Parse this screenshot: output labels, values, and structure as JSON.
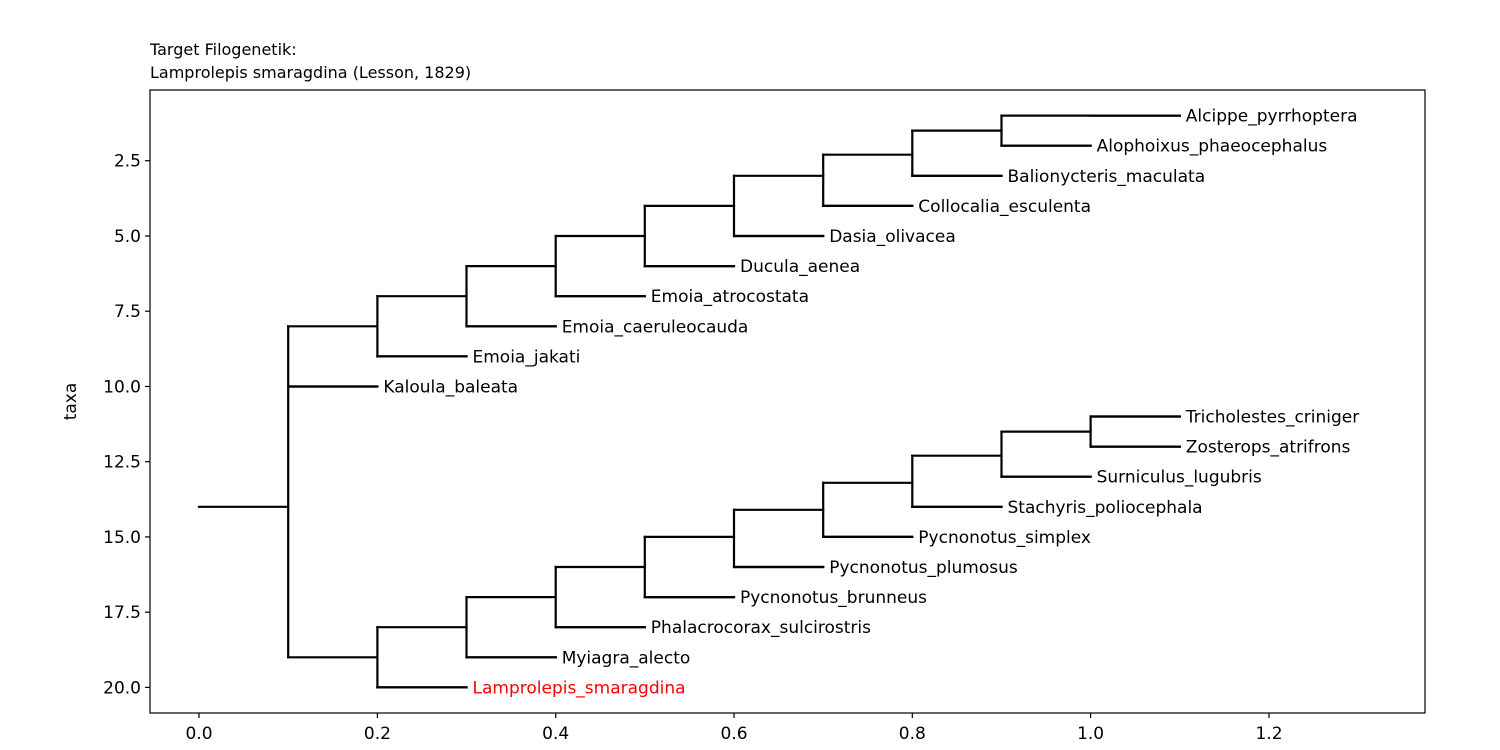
{
  "chart_data": {
    "type": "tree",
    "title_lines": [
      "Target Filogenetik:",
      "Lamprolepis smaragdina (Lesson, 1829)"
    ],
    "xlabel": "",
    "ylabel": "taxa",
    "xlim": [
      -0.055,
      1.375
    ],
    "ylim": [
      20.85,
      0.15
    ],
    "xticks": [
      0.0,
      0.2,
      0.4,
      0.6,
      0.8,
      1.0,
      1.2
    ],
    "xtick_labels": [
      "0.0",
      "0.2",
      "0.4",
      "0.6",
      "0.8",
      "1.0",
      "1.2"
    ],
    "yticks": [
      2.5,
      5.0,
      7.5,
      10.0,
      12.5,
      15.0,
      17.5,
      20.0
    ],
    "ytick_labels": [
      "2.5",
      "5.0",
      "7.5",
      "10.0",
      "12.5",
      "15.0",
      "17.5",
      "20.0"
    ],
    "highlight_color": "#ff0000",
    "line_color": "#000000",
    "leaves": [
      {
        "name": "Alcippe_pyrrhoptera",
        "x": 1.1,
        "y": 1,
        "highlight": false
      },
      {
        "name": "Alophoixus_phaeocephalus",
        "x": 1.0,
        "y": 2,
        "highlight": false
      },
      {
        "name": "Balionycteris_maculata",
        "x": 0.9,
        "y": 3,
        "highlight": false
      },
      {
        "name": "Collocalia_esculenta",
        "x": 0.8,
        "y": 4,
        "highlight": false
      },
      {
        "name": "Dasia_olivacea",
        "x": 0.7,
        "y": 5,
        "highlight": false
      },
      {
        "name": "Ducula_aenea",
        "x": 0.6,
        "y": 6,
        "highlight": false
      },
      {
        "name": "Emoia_atrocostata",
        "x": 0.5,
        "y": 7,
        "highlight": false
      },
      {
        "name": "Emoia_caeruleocauda",
        "x": 0.4,
        "y": 8,
        "highlight": false
      },
      {
        "name": "Emoia_jakati",
        "x": 0.3,
        "y": 9,
        "highlight": false
      },
      {
        "name": "Kaloula_baleata",
        "x": 0.2,
        "y": 10,
        "highlight": false
      },
      {
        "name": "Tricholestes_criniger",
        "x": 1.1,
        "y": 11,
        "highlight": false
      },
      {
        "name": "Zosterops_atrifrons",
        "x": 1.1,
        "y": 12,
        "highlight": false
      },
      {
        "name": "Surniculus_lugubris",
        "x": 1.0,
        "y": 13,
        "highlight": false
      },
      {
        "name": "Stachyris_poliocephala",
        "x": 0.9,
        "y": 14,
        "highlight": false
      },
      {
        "name": "Pycnonotus_simplex",
        "x": 0.8,
        "y": 15,
        "highlight": false
      },
      {
        "name": "Pycnonotus_plumosus",
        "x": 0.7,
        "y": 16,
        "highlight": false
      },
      {
        "name": "Pycnonotus_brunneus",
        "x": 0.6,
        "y": 17,
        "highlight": false
      },
      {
        "name": "Phalacrocorax_sulcirostris",
        "x": 0.5,
        "y": 18,
        "highlight": false
      },
      {
        "name": "Myiagra_alecto",
        "x": 0.4,
        "y": 19,
        "highlight": false
      },
      {
        "name": "Lamprolepis_smaragdina",
        "x": 0.3,
        "y": 20,
        "highlight": true
      }
    ],
    "branches": [
      [
        [
          0.0,
          14.0
        ],
        [
          0.1,
          14.0
        ]
      ],
      [
        [
          0.1,
          8.0
        ],
        [
          0.1,
          19.0
        ]
      ],
      [
        [
          0.1,
          8.0
        ],
        [
          0.2,
          8.0
        ]
      ],
      [
        [
          0.1,
          19.0
        ],
        [
          0.2,
          19.0
        ]
      ],
      [
        [
          0.1,
          10.0
        ],
        [
          0.2,
          10.0
        ]
      ],
      [
        [
          0.2,
          7.0
        ],
        [
          0.2,
          9.0
        ]
      ],
      [
        [
          0.2,
          7.0
        ],
        [
          0.3,
          7.0
        ]
      ],
      [
        [
          0.2,
          9.0
        ],
        [
          0.3,
          9.0
        ]
      ],
      [
        [
          0.3,
          6.0
        ],
        [
          0.3,
          8.0
        ]
      ],
      [
        [
          0.3,
          6.0
        ],
        [
          0.4,
          6.0
        ]
      ],
      [
        [
          0.3,
          8.0
        ],
        [
          0.4,
          8.0
        ]
      ],
      [
        [
          0.4,
          5.0
        ],
        [
          0.4,
          7.0
        ]
      ],
      [
        [
          0.4,
          5.0
        ],
        [
          0.5,
          5.0
        ]
      ],
      [
        [
          0.4,
          7.0
        ],
        [
          0.5,
          7.0
        ]
      ],
      [
        [
          0.5,
          4.0
        ],
        [
          0.5,
          6.0
        ]
      ],
      [
        [
          0.5,
          4.0
        ],
        [
          0.6,
          4.0
        ]
      ],
      [
        [
          0.5,
          6.0
        ],
        [
          0.6,
          6.0
        ]
      ],
      [
        [
          0.6,
          3.0
        ],
        [
          0.6,
          5.0
        ]
      ],
      [
        [
          0.6,
          3.0
        ],
        [
          0.7,
          3.0
        ]
      ],
      [
        [
          0.6,
          5.0
        ],
        [
          0.7,
          5.0
        ]
      ],
      [
        [
          0.7,
          2.3
        ],
        [
          0.7,
          4.0
        ]
      ],
      [
        [
          0.7,
          2.3
        ],
        [
          0.8,
          2.3
        ]
      ],
      [
        [
          0.7,
          4.0
        ],
        [
          0.8,
          4.0
        ]
      ],
      [
        [
          0.8,
          1.5
        ],
        [
          0.8,
          3.0
        ]
      ],
      [
        [
          0.8,
          1.5
        ],
        [
          0.9,
          1.5
        ]
      ],
      [
        [
          0.8,
          3.0
        ],
        [
          0.9,
          3.0
        ]
      ],
      [
        [
          0.9,
          1.0
        ],
        [
          0.9,
          2.0
        ]
      ],
      [
        [
          0.9,
          1.0
        ],
        [
          1.1,
          1.0
        ]
      ],
      [
        [
          0.9,
          2.0
        ],
        [
          1.0,
          2.0
        ]
      ],
      [
        [
          0.2,
          18.0
        ],
        [
          0.2,
          20.0
        ]
      ],
      [
        [
          0.2,
          18.0
        ],
        [
          0.3,
          18.0
        ]
      ],
      [
        [
          0.2,
          20.0
        ],
        [
          0.3,
          20.0
        ]
      ],
      [
        [
          0.3,
          17.0
        ],
        [
          0.3,
          19.0
        ]
      ],
      [
        [
          0.3,
          17.0
        ],
        [
          0.4,
          17.0
        ]
      ],
      [
        [
          0.3,
          19.0
        ],
        [
          0.4,
          19.0
        ]
      ],
      [
        [
          0.4,
          16.0
        ],
        [
          0.4,
          18.0
        ]
      ],
      [
        [
          0.4,
          16.0
        ],
        [
          0.5,
          16.0
        ]
      ],
      [
        [
          0.4,
          18.0
        ],
        [
          0.5,
          18.0
        ]
      ],
      [
        [
          0.5,
          15.0
        ],
        [
          0.5,
          17.0
        ]
      ],
      [
        [
          0.5,
          15.0
        ],
        [
          0.6,
          15.0
        ]
      ],
      [
        [
          0.5,
          17.0
        ],
        [
          0.6,
          17.0
        ]
      ],
      [
        [
          0.6,
          14.1
        ],
        [
          0.6,
          16.0
        ]
      ],
      [
        [
          0.6,
          14.1
        ],
        [
          0.7,
          14.1
        ]
      ],
      [
        [
          0.6,
          16.0
        ],
        [
          0.7,
          16.0
        ]
      ],
      [
        [
          0.7,
          13.2
        ],
        [
          0.7,
          15.0
        ]
      ],
      [
        [
          0.7,
          13.2
        ],
        [
          0.8,
          13.2
        ]
      ],
      [
        [
          0.7,
          15.0
        ],
        [
          0.8,
          15.0
        ]
      ],
      [
        [
          0.8,
          12.3
        ],
        [
          0.8,
          14.0
        ]
      ],
      [
        [
          0.8,
          12.3
        ],
        [
          0.9,
          12.3
        ]
      ],
      [
        [
          0.8,
          14.0
        ],
        [
          0.9,
          14.0
        ]
      ],
      [
        [
          0.9,
          11.5
        ],
        [
          0.9,
          13.0
        ]
      ],
      [
        [
          0.9,
          11.5
        ],
        [
          1.0,
          11.5
        ]
      ],
      [
        [
          0.9,
          13.0
        ],
        [
          1.0,
          13.0
        ]
      ],
      [
        [
          1.0,
          11.0
        ],
        [
          1.0,
          12.0
        ]
      ],
      [
        [
          1.0,
          11.0
        ],
        [
          1.1,
          11.0
        ]
      ],
      [
        [
          1.0,
          12.0
        ],
        [
          1.1,
          12.0
        ]
      ]
    ]
  }
}
